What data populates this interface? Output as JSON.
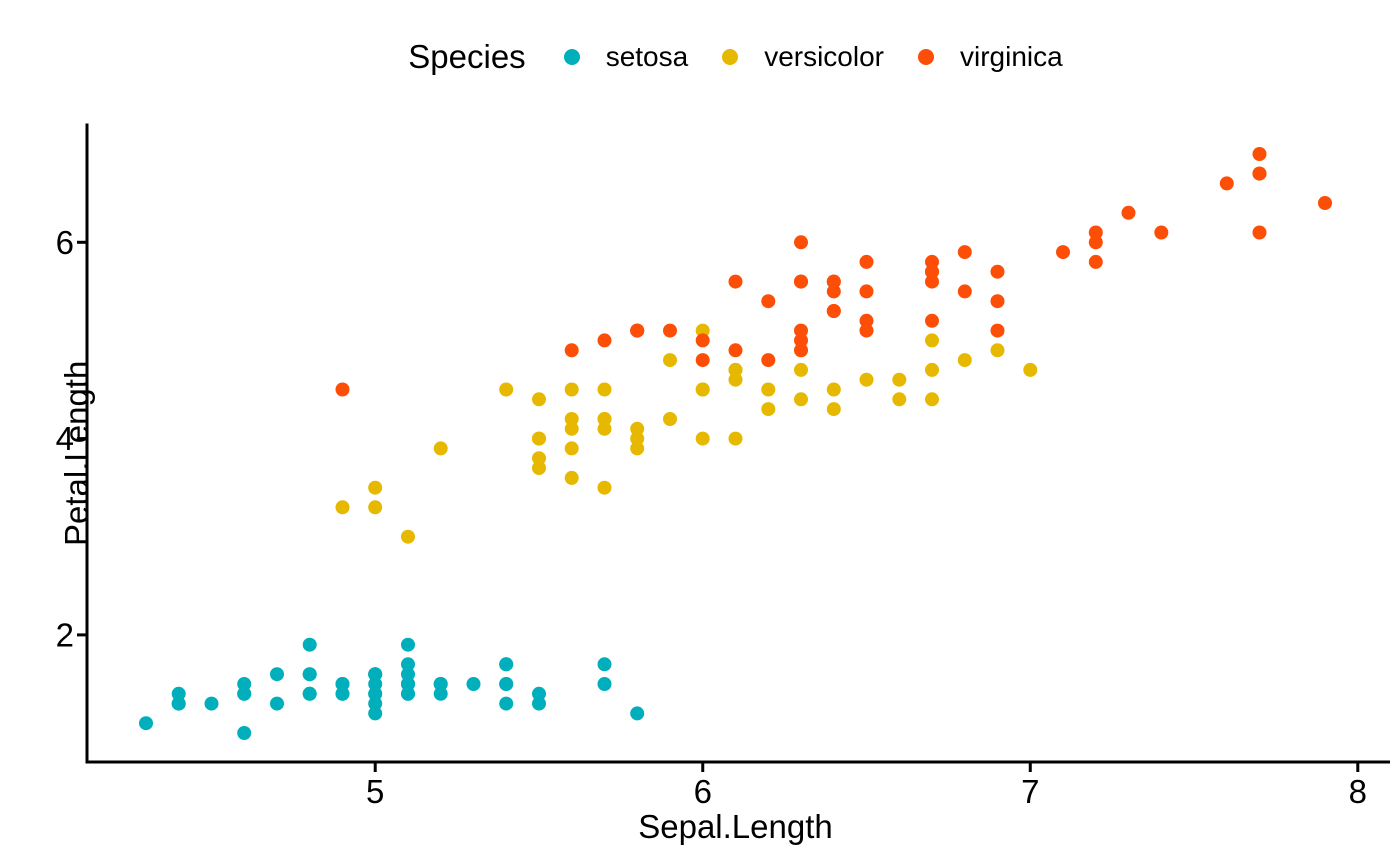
{
  "chart_data": {
    "type": "scatter",
    "title": "",
    "xlabel": "Sepal.Length",
    "ylabel": "Petal.Length",
    "legend_title": "Species",
    "legend_position": "top",
    "grid": false,
    "background": "#ffffff",
    "axis_color": "#000000",
    "text_color": "#000000",
    "xlim": [
      4.12,
      8.08
    ],
    "ylim": [
      0.705,
      7.195
    ],
    "xticks": [
      5,
      6,
      7,
      8
    ],
    "yticks": [
      2,
      4,
      6
    ],
    "point_radius": 7,
    "series": [
      {
        "name": "setosa",
        "color": "#00AFBB",
        "points": [
          [
            5.1,
            1.4
          ],
          [
            4.9,
            1.4
          ],
          [
            4.7,
            1.3
          ],
          [
            4.6,
            1.5
          ],
          [
            5.0,
            1.4
          ],
          [
            5.4,
            1.7
          ],
          [
            4.6,
            1.4
          ],
          [
            5.0,
            1.5
          ],
          [
            4.4,
            1.4
          ],
          [
            4.9,
            1.5
          ],
          [
            5.4,
            1.5
          ],
          [
            4.8,
            1.6
          ],
          [
            4.8,
            1.4
          ],
          [
            4.3,
            1.1
          ],
          [
            5.8,
            1.2
          ],
          [
            5.7,
            1.5
          ],
          [
            5.4,
            1.3
          ],
          [
            5.1,
            1.4
          ],
          [
            5.7,
            1.7
          ],
          [
            5.1,
            1.5
          ],
          [
            5.4,
            1.7
          ],
          [
            5.1,
            1.5
          ],
          [
            4.6,
            1.0
          ],
          [
            5.1,
            1.7
          ],
          [
            4.8,
            1.9
          ],
          [
            5.0,
            1.6
          ],
          [
            5.0,
            1.6
          ],
          [
            5.2,
            1.5
          ],
          [
            5.2,
            1.4
          ],
          [
            4.7,
            1.6
          ],
          [
            4.8,
            1.6
          ],
          [
            5.4,
            1.5
          ],
          [
            5.2,
            1.5
          ],
          [
            5.5,
            1.4
          ],
          [
            4.9,
            1.5
          ],
          [
            5.0,
            1.2
          ],
          [
            5.5,
            1.3
          ],
          [
            4.9,
            1.4
          ],
          [
            4.4,
            1.3
          ],
          [
            5.1,
            1.5
          ],
          [
            5.0,
            1.3
          ],
          [
            4.5,
            1.3
          ],
          [
            4.4,
            1.3
          ],
          [
            5.0,
            1.6
          ],
          [
            5.1,
            1.9
          ],
          [
            4.8,
            1.4
          ],
          [
            5.1,
            1.6
          ],
          [
            4.6,
            1.4
          ],
          [
            5.3,
            1.5
          ],
          [
            5.0,
            1.4
          ]
        ]
      },
      {
        "name": "versicolor",
        "color": "#E7B800",
        "points": [
          [
            7.0,
            4.7
          ],
          [
            6.4,
            4.5
          ],
          [
            6.9,
            4.9
          ],
          [
            5.5,
            4.0
          ],
          [
            6.5,
            4.6
          ],
          [
            5.7,
            4.5
          ],
          [
            6.3,
            4.7
          ],
          [
            4.9,
            3.3
          ],
          [
            6.6,
            4.6
          ],
          [
            5.2,
            3.9
          ],
          [
            5.0,
            3.5
          ],
          [
            5.9,
            4.2
          ],
          [
            6.0,
            4.0
          ],
          [
            6.1,
            4.7
          ],
          [
            5.6,
            3.6
          ],
          [
            6.7,
            4.4
          ],
          [
            5.6,
            4.5
          ],
          [
            5.8,
            4.1
          ],
          [
            6.2,
            4.5
          ],
          [
            5.6,
            3.9
          ],
          [
            5.9,
            4.8
          ],
          [
            6.1,
            4.0
          ],
          [
            6.3,
            4.9
          ],
          [
            6.1,
            4.7
          ],
          [
            6.4,
            4.3
          ],
          [
            6.6,
            4.4
          ],
          [
            6.8,
            4.8
          ],
          [
            6.7,
            5.0
          ],
          [
            6.0,
            4.5
          ],
          [
            5.7,
            3.5
          ],
          [
            5.5,
            3.8
          ],
          [
            5.5,
            3.7
          ],
          [
            5.8,
            3.9
          ],
          [
            6.0,
            5.1
          ],
          [
            5.4,
            4.5
          ],
          [
            6.0,
            4.5
          ],
          [
            6.7,
            4.7
          ],
          [
            6.3,
            4.4
          ],
          [
            5.6,
            4.1
          ],
          [
            5.5,
            4.0
          ],
          [
            5.5,
            4.4
          ],
          [
            6.1,
            4.6
          ],
          [
            5.8,
            4.0
          ],
          [
            5.0,
            3.3
          ],
          [
            5.6,
            4.2
          ],
          [
            5.7,
            4.2
          ],
          [
            5.7,
            4.2
          ],
          [
            6.2,
            4.3
          ],
          [
            5.1,
            3.0
          ],
          [
            5.7,
            4.1
          ]
        ]
      },
      {
        "name": "virginica",
        "color": "#FC4E07",
        "points": [
          [
            6.3,
            6.0
          ],
          [
            5.8,
            5.1
          ],
          [
            7.1,
            5.9
          ],
          [
            6.3,
            5.6
          ],
          [
            6.5,
            5.8
          ],
          [
            7.6,
            6.6
          ],
          [
            4.9,
            4.5
          ],
          [
            7.3,
            6.3
          ],
          [
            6.7,
            5.8
          ],
          [
            7.2,
            6.1
          ],
          [
            6.5,
            5.1
          ],
          [
            6.4,
            5.3
          ],
          [
            6.8,
            5.5
          ],
          [
            5.7,
            5.0
          ],
          [
            5.8,
            5.1
          ],
          [
            6.4,
            5.3
          ],
          [
            6.5,
            5.5
          ],
          [
            7.7,
            6.7
          ],
          [
            7.7,
            6.9
          ],
          [
            6.0,
            5.0
          ],
          [
            6.9,
            5.7
          ],
          [
            5.6,
            4.9
          ],
          [
            7.7,
            6.7
          ],
          [
            6.3,
            4.9
          ],
          [
            6.7,
            5.7
          ],
          [
            7.2,
            6.0
          ],
          [
            6.2,
            4.8
          ],
          [
            6.1,
            4.9
          ],
          [
            6.4,
            5.6
          ],
          [
            7.2,
            5.8
          ],
          [
            7.4,
            6.1
          ],
          [
            7.9,
            6.4
          ],
          [
            6.4,
            5.6
          ],
          [
            6.3,
            5.1
          ],
          [
            6.1,
            5.6
          ],
          [
            7.7,
            6.1
          ],
          [
            6.3,
            5.6
          ],
          [
            6.4,
            5.5
          ],
          [
            6.0,
            4.8
          ],
          [
            6.9,
            5.4
          ],
          [
            6.7,
            5.6
          ],
          [
            6.9,
            5.1
          ],
          [
            5.8,
            5.1
          ],
          [
            6.8,
            5.9
          ],
          [
            6.7,
            5.7
          ],
          [
            6.7,
            5.2
          ],
          [
            6.3,
            5.0
          ],
          [
            6.5,
            5.2
          ],
          [
            6.2,
            5.4
          ],
          [
            5.9,
            5.1
          ]
        ]
      }
    ]
  }
}
